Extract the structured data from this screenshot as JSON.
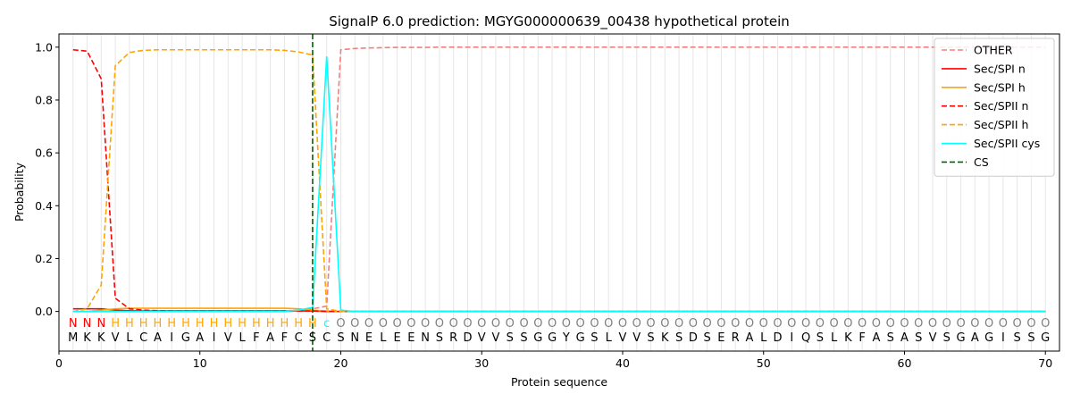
{
  "chart_data": {
    "type": "line",
    "title": "SignalP 6.0 prediction: MGYG000000639_00438 hypothetical protein",
    "xlabel": "Protein sequence",
    "ylabel": "Probability",
    "xlim": [
      0,
      71
    ],
    "ylim": [
      -0.15,
      1.05
    ],
    "x_ticks": [
      "0",
      "10",
      "20",
      "30",
      "40",
      "50",
      "60",
      "70"
    ],
    "y_ticks": [
      "0.0",
      "0.2",
      "0.4",
      "0.6",
      "0.8",
      "1.0"
    ],
    "grid": "vertical lines at each residue",
    "legend_position": "top-right",
    "sequence": [
      "M",
      "K",
      "K",
      "V",
      "L",
      "C",
      "A",
      "I",
      "G",
      "A",
      "I",
      "V",
      "L",
      "F",
      "A",
      "F",
      "C",
      "S",
      "C",
      "S",
      "N",
      "E",
      "L",
      "E",
      "E",
      "N",
      "S",
      "R",
      "D",
      "V",
      "V",
      "S",
      "S",
      "G",
      "G",
      "Y",
      "G",
      "S",
      "L",
      "V",
      "V",
      "S",
      "K",
      "S",
      "D",
      "S",
      "E",
      "R",
      "A",
      "L",
      "D",
      "I",
      "Q",
      "S",
      "L",
      "K",
      "F",
      "A",
      "S",
      "A",
      "S",
      "V",
      "S",
      "G",
      "A",
      "G",
      "I",
      "S",
      "S",
      "G"
    ],
    "region_labels": [
      "N",
      "N",
      "N",
      "H",
      "H",
      "H",
      "H",
      "H",
      "H",
      "H",
      "H",
      "H",
      "H",
      "H",
      "H",
      "H",
      "H",
      "H",
      "c",
      "O",
      "O",
      "O",
      "O",
      "O",
      "O",
      "O",
      "O",
      "O",
      "O",
      "O",
      "O",
      "O",
      "O",
      "O",
      "O",
      "O",
      "O",
      "O",
      "O",
      "O",
      "O",
      "O",
      "O",
      "O",
      "O",
      "O",
      "O",
      "O",
      "O",
      "O",
      "O",
      "O",
      "O",
      "O",
      "O",
      "O",
      "O",
      "O",
      "O",
      "O",
      "O",
      "O",
      "O",
      "O",
      "O",
      "O",
      "O",
      "O",
      "O",
      "O"
    ],
    "region_colors": {
      "N": "#ff0000",
      "H": "#ffa500",
      "c": "#00ffff",
      "O": "#808080"
    },
    "cleavage_site": 18,
    "series": [
      {
        "name": "OTHER",
        "color": "#f08080",
        "dash": true,
        "values": [
          0.0,
          0.0,
          0.0,
          0.0,
          0.0,
          0.0,
          0.0,
          0.0,
          0.0,
          0.0,
          0.0,
          0.0,
          0.0,
          0.0,
          0.0,
          0.0,
          0.005,
          0.01,
          0.02,
          0.99,
          0.995,
          0.997,
          0.998,
          0.999,
          0.999,
          0.999,
          1.0,
          1.0,
          1.0,
          1.0,
          1.0,
          1.0,
          1.0,
          1.0,
          1.0,
          1.0,
          1.0,
          1.0,
          1.0,
          1.0,
          1.0,
          1.0,
          1.0,
          1.0,
          1.0,
          1.0,
          1.0,
          1.0,
          1.0,
          1.0,
          1.0,
          1.0,
          1.0,
          1.0,
          1.0,
          1.0,
          1.0,
          1.0,
          1.0,
          1.0,
          1.0,
          1.0,
          1.0,
          1.0,
          1.0,
          1.0,
          1.0,
          1.0,
          1.0,
          1.0
        ]
      },
      {
        "name": "Sec/SPI n",
        "color": "#ff0000",
        "dash": false,
        "values": [
          0.01,
          0.01,
          0.01,
          0.005,
          0.003,
          0.002,
          0.002,
          0.002,
          0.002,
          0.002,
          0.002,
          0.002,
          0.002,
          0.002,
          0.002,
          0.002,
          0.002,
          0.002,
          0.0,
          0.0,
          0.0,
          0.0,
          0.0,
          0.0,
          0.0,
          0.0,
          0.0,
          0.0,
          0.0,
          0.0,
          0.0,
          0.0,
          0.0,
          0.0,
          0.0,
          0.0,
          0.0,
          0.0,
          0.0,
          0.0,
          0.0,
          0.0,
          0.0,
          0.0,
          0.0,
          0.0,
          0.0,
          0.0,
          0.0,
          0.0,
          0.0,
          0.0,
          0.0,
          0.0,
          0.0,
          0.0,
          0.0,
          0.0,
          0.0,
          0.0,
          0.0,
          0.0,
          0.0,
          0.0,
          0.0,
          0.0,
          0.0,
          0.0,
          0.0,
          0.0
        ]
      },
      {
        "name": "Sec/SPI h",
        "color": "#ffa500",
        "dash": false,
        "values": [
          0.0,
          0.0,
          0.005,
          0.01,
          0.012,
          0.012,
          0.012,
          0.012,
          0.012,
          0.012,
          0.012,
          0.012,
          0.012,
          0.012,
          0.012,
          0.012,
          0.01,
          0.005,
          0.002,
          0.0,
          0.0,
          0.0,
          0.0,
          0.0,
          0.0,
          0.0,
          0.0,
          0.0,
          0.0,
          0.0,
          0.0,
          0.0,
          0.0,
          0.0,
          0.0,
          0.0,
          0.0,
          0.0,
          0.0,
          0.0,
          0.0,
          0.0,
          0.0,
          0.0,
          0.0,
          0.0,
          0.0,
          0.0,
          0.0,
          0.0,
          0.0,
          0.0,
          0.0,
          0.0,
          0.0,
          0.0,
          0.0,
          0.0,
          0.0,
          0.0,
          0.0,
          0.0,
          0.0,
          0.0,
          0.0,
          0.0,
          0.0,
          0.0,
          0.0,
          0.0
        ]
      },
      {
        "name": "Sec/SPII n",
        "color": "#ff0000",
        "dash": true,
        "values": [
          0.99,
          0.985,
          0.88,
          0.05,
          0.01,
          0.005,
          0.003,
          0.002,
          0.002,
          0.002,
          0.002,
          0.002,
          0.002,
          0.002,
          0.002,
          0.002,
          0.002,
          0.002,
          0.0,
          0.0,
          0.0,
          0.0,
          0.0,
          0.0,
          0.0,
          0.0,
          0.0,
          0.0,
          0.0,
          0.0,
          0.0,
          0.0,
          0.0,
          0.0,
          0.0,
          0.0,
          0.0,
          0.0,
          0.0,
          0.0,
          0.0,
          0.0,
          0.0,
          0.0,
          0.0,
          0.0,
          0.0,
          0.0,
          0.0,
          0.0,
          0.0,
          0.0,
          0.0,
          0.0,
          0.0,
          0.0,
          0.0,
          0.0,
          0.0,
          0.0,
          0.0,
          0.0,
          0.0,
          0.0,
          0.0,
          0.0,
          0.0,
          0.0,
          0.0,
          0.0
        ]
      },
      {
        "name": "Sec/SPII h",
        "color": "#ffa500",
        "dash": true,
        "values": [
          0.0,
          0.01,
          0.1,
          0.93,
          0.98,
          0.988,
          0.99,
          0.99,
          0.99,
          0.99,
          0.99,
          0.99,
          0.99,
          0.99,
          0.99,
          0.988,
          0.982,
          0.97,
          0.01,
          0.0,
          0.0,
          0.0,
          0.0,
          0.0,
          0.0,
          0.0,
          0.0,
          0.0,
          0.0,
          0.0,
          0.0,
          0.0,
          0.0,
          0.0,
          0.0,
          0.0,
          0.0,
          0.0,
          0.0,
          0.0,
          0.0,
          0.0,
          0.0,
          0.0,
          0.0,
          0.0,
          0.0,
          0.0,
          0.0,
          0.0,
          0.0,
          0.0,
          0.0,
          0.0,
          0.0,
          0.0,
          0.0,
          0.0,
          0.0,
          0.0,
          0.0,
          0.0,
          0.0,
          0.0,
          0.0,
          0.0,
          0.0,
          0.0,
          0.0,
          0.0
        ]
      },
      {
        "name": "Sec/SPII cys",
        "color": "#00ffff",
        "dash": false,
        "values": [
          0.0,
          0.0,
          0.0,
          0.0,
          0.0,
          0.0,
          0.0,
          0.0,
          0.0,
          0.0,
          0.0,
          0.0,
          0.0,
          0.0,
          0.0,
          0.0,
          0.005,
          0.015,
          0.965,
          0.005,
          0.0,
          0.0,
          0.0,
          0.0,
          0.0,
          0.0,
          0.0,
          0.0,
          0.0,
          0.0,
          0.0,
          0.0,
          0.0,
          0.0,
          0.0,
          0.0,
          0.0,
          0.0,
          0.0,
          0.0,
          0.0,
          0.0,
          0.0,
          0.0,
          0.0,
          0.0,
          0.0,
          0.0,
          0.0,
          0.0,
          0.0,
          0.0,
          0.0,
          0.0,
          0.0,
          0.0,
          0.0,
          0.0,
          0.0,
          0.0,
          0.0,
          0.0,
          0.0,
          0.0,
          0.0,
          0.0,
          0.0,
          0.0,
          0.0,
          0.0
        ]
      }
    ],
    "legend_extra": {
      "name": "CS",
      "color": "#006400",
      "dash": true
    }
  }
}
